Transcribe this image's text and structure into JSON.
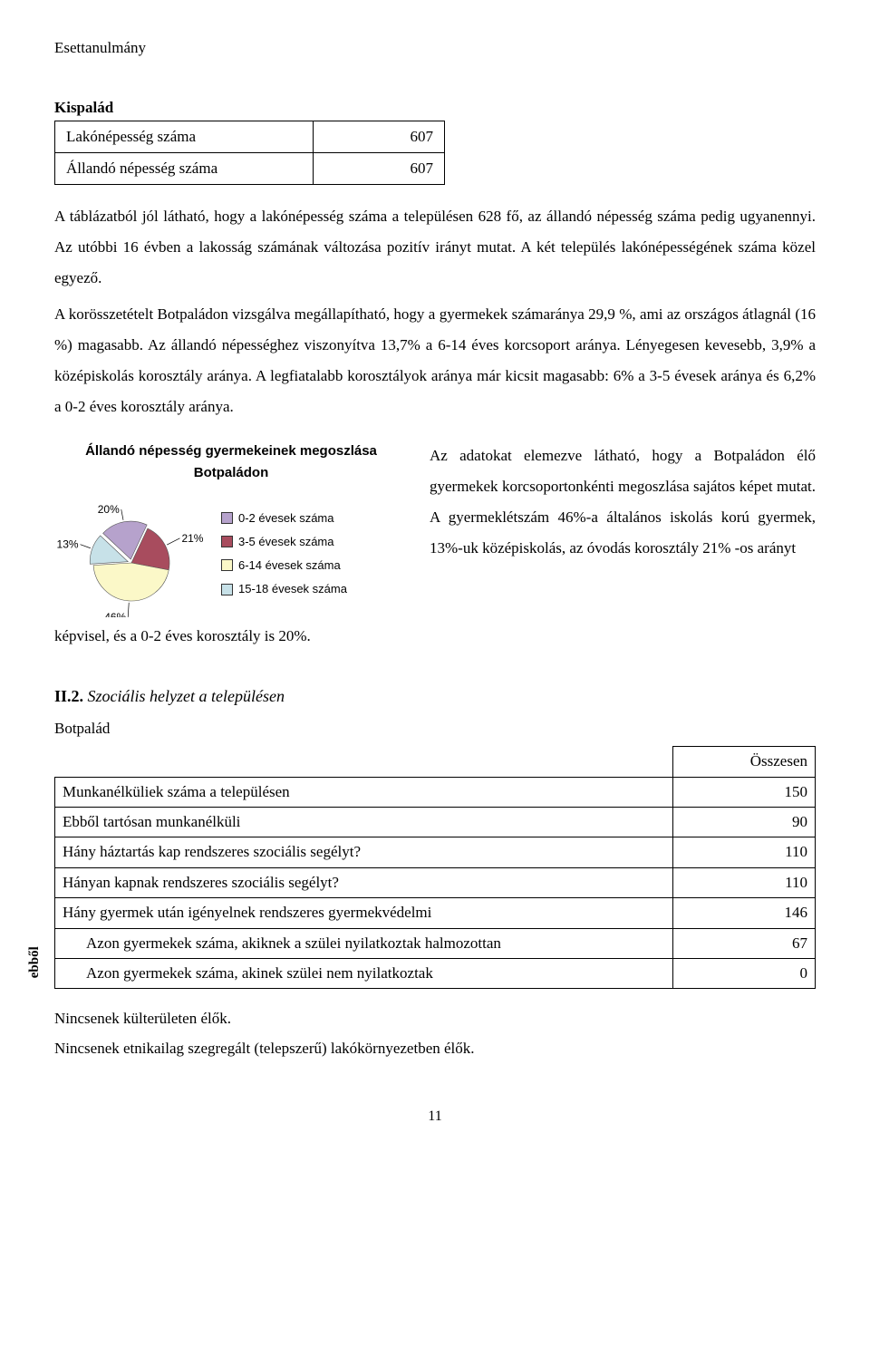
{
  "header": "Esettanulmány",
  "top_table": {
    "title": "Kispalád",
    "rows": [
      {
        "label": "Lakónépesség száma",
        "value": "607"
      },
      {
        "label": "Állandó népesség száma",
        "value": "607"
      }
    ]
  },
  "paragraph1": "A táblázatból jól látható, hogy a lakónépesség száma a településen 628 fő, az állandó népesség száma pedig ugyanennyi. Az utóbbi 16 évben a lakosság számának változása pozitív irányt mutat. A két település lakónépességének száma közel egyező.",
  "paragraph2": "A korösszetételt Botpaládon vizsgálva megállapítható, hogy a gyermekek számaránya 29,9 %, ami az országos átlagnál (16 %) magasabb. Az állandó népességhez viszonyítva 13,7% a 6-14 éves korcsoport aránya. Lényegesen kevesebb, 3,9% a középiskolás korosztály aránya. A legfiatalabb korosztályok aránya már kicsit magasabb: 6% a 3-5 évesek aránya és 6,2% a 0-2 éves korosztály aránya.",
  "chart": {
    "type": "pie",
    "title": "Állandó népesség gyermekeinek megoszlása Botpaládon",
    "background_color": "#ffffff",
    "label_fontsize": 12,
    "title_fontsize": 15,
    "slices": [
      {
        "label": "0-2 évesek száma",
        "value": 20,
        "display": "20%",
        "color": "#b6a2cc"
      },
      {
        "label": "3-5 évesek száma",
        "value": 21,
        "display": "21%",
        "color": "#a84c5e"
      },
      {
        "label": "6-14 évesek száma",
        "value": 46,
        "display": "46%",
        "color": "#fbf8c8"
      },
      {
        "label": "15-18 évesek száma",
        "value": 13,
        "display": "13%",
        "color": "#c7e1e8"
      }
    ],
    "legend_swatch_border": "#333333"
  },
  "chart_caption": "képvisel, és a 0-2 éves korosztály is 20%.",
  "side_text": "Az adatokat elemezve látható, hogy a Botpaládon élő gyermekek korcsoportonkénti megoszlása sajátos képet mutat. A gyermeklétszám 46%-a általános iskolás korú gyermek, 13%-uk középiskolás, az óvodás korosztály 21% -os arányt",
  "section2": {
    "prefix": "II.2.",
    "title": "Szociális helyzet a településen",
    "subtitle": "Botpalád",
    "col_header": "Összesen",
    "rows": [
      {
        "label": "Munkanélküliek száma a településen",
        "value": "150",
        "indent": false
      },
      {
        "label": "Ebből tartósan munkanélküli",
        "value": "90",
        "indent": false
      },
      {
        "label": "Hány háztartás kap rendszeres szociális segélyt?",
        "value": "110",
        "indent": false
      },
      {
        "label": "Hányan kapnak rendszeres szociális segélyt?",
        "value": "110",
        "indent": false
      },
      {
        "label": "Hány gyermek után igényelnek rendszeres gyermekvédelmi",
        "value": "146",
        "indent": false
      },
      {
        "label": "Azon gyermekek száma, akiknek a szülei nyilatkoztak halmozottan",
        "value": "67",
        "indent": true
      },
      {
        "label": "Azon gyermekek száma, akinek szülei nem nyilatkoztak",
        "value": "0",
        "indent": true
      }
    ],
    "indent_label": "ebből"
  },
  "footer_lines": [
    "Nincsenek külterületen élők.",
    "Nincsenek etnikailag szegregált (telepszerű) lakókörnyezetben élők."
  ],
  "page_number": "11"
}
